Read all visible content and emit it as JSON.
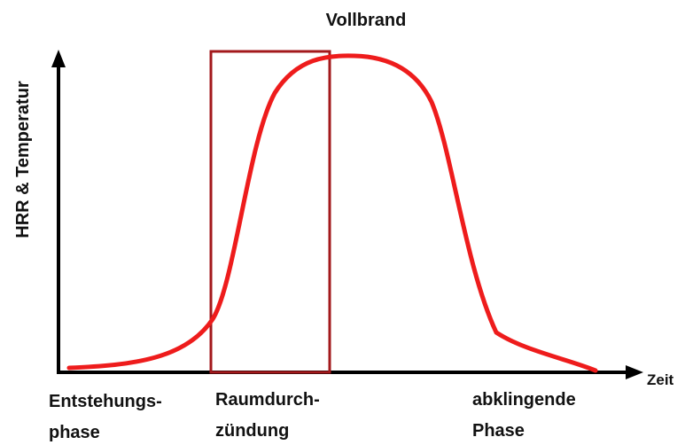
{
  "title": "Vollbrand",
  "y_axis_label": "HRR & Temperatur",
  "x_axis_label": "Zeit",
  "phases": [
    {
      "lines": [
        "Entstehungs-",
        "phase"
      ]
    },
    {
      "lines": [
        "Raumdurch-",
        "zündung"
      ]
    },
    {
      "lines": [
        "abklingende",
        "Phase"
      ]
    }
  ]
}
